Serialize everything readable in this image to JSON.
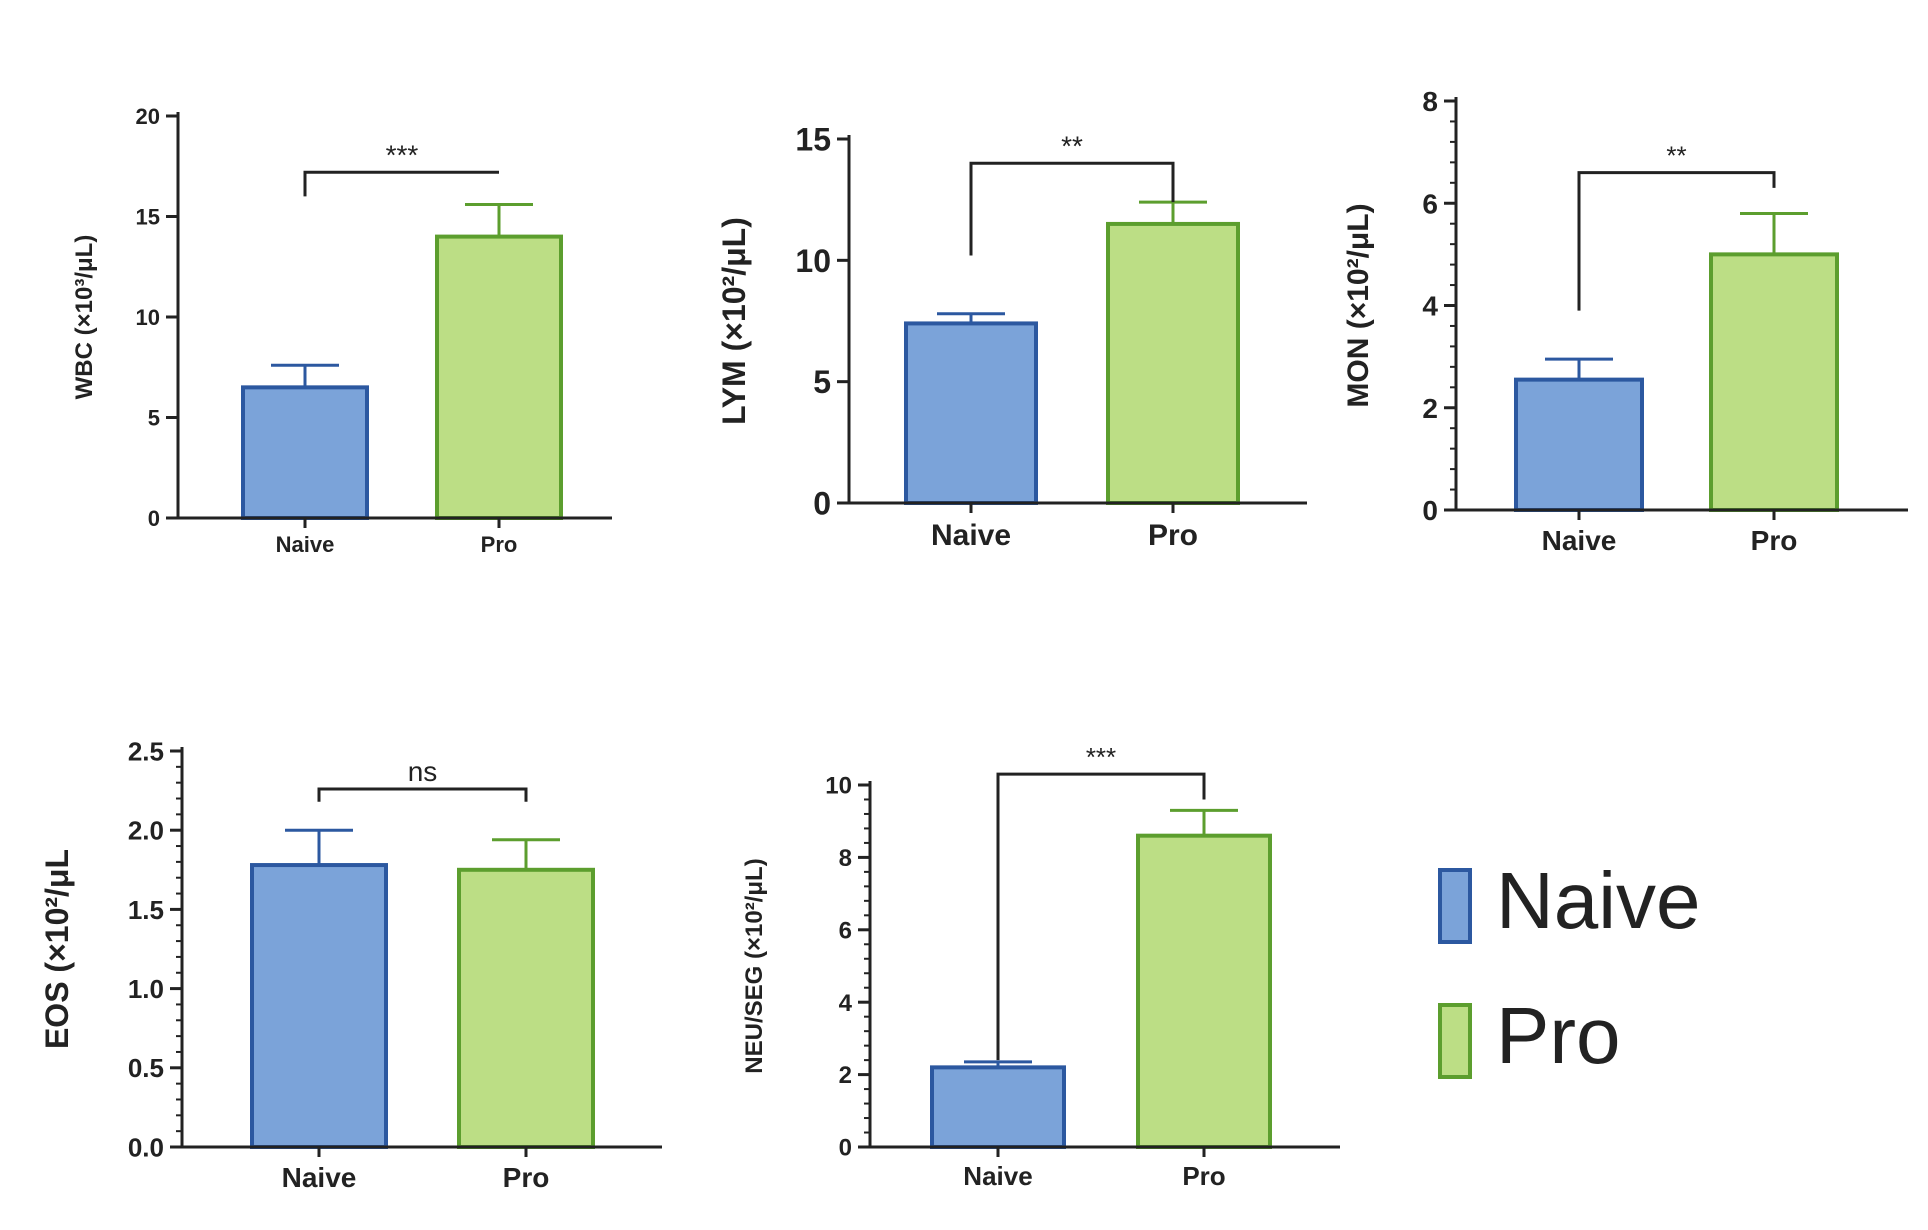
{
  "colors": {
    "naive_fill": "#7ba3d9",
    "naive_edge": "#2c58a0",
    "pro_fill": "#bcde85",
    "pro_edge": "#5c9e2e",
    "axis": "#222222"
  },
  "legend": [
    {
      "label": "Naive",
      "series": "naive"
    },
    {
      "label": "Pro",
      "series": "pro"
    }
  ],
  "chart_data": [
    {
      "id": "wbc",
      "type": "bar",
      "categories": [
        "Naive",
        "Pro"
      ],
      "values": [
        6.5,
        14.0
      ],
      "errors": [
        1.1,
        1.6
      ],
      "ylabel": "WBC (×10³/μL)",
      "ylim": [
        0,
        20
      ],
      "yticks": [
        "0",
        "5",
        "10",
        "15",
        "20"
      ],
      "significance": "***",
      "bracket_left_value": 16,
      "bracket_right_value": 17.2,
      "bracket_top_value": 17.2
    },
    {
      "id": "lym",
      "type": "bar",
      "categories": [
        "Naive",
        "Pro"
      ],
      "values": [
        7.4,
        11.5
      ],
      "errors": [
        0.4,
        0.9
      ],
      "ylabel": "LYM (×10²/μL)",
      "ylim": [
        0,
        15
      ],
      "yticks": [
        "0",
        "5",
        "10",
        "15"
      ],
      "significance": "**",
      "bracket_left_value": 10.2,
      "bracket_right_value": 12.4,
      "bracket_top_value": 14.0
    },
    {
      "id": "mon",
      "type": "bar",
      "categories": [
        "Naive",
        "Pro"
      ],
      "values": [
        2.55,
        5.0
      ],
      "errors": [
        0.4,
        0.8
      ],
      "ylabel": "MON (×10²/μL)",
      "ylim": [
        0,
        8
      ],
      "yticks": [
        "0",
        "2",
        "4",
        "6",
        "8"
      ],
      "significance": "**",
      "bracket_left_value": 3.9,
      "bracket_right_value": 6.3,
      "bracket_top_value": 6.6
    },
    {
      "id": "eos",
      "type": "bar",
      "categories": [
        "Naive",
        "Pro"
      ],
      "values": [
        1.78,
        1.75
      ],
      "errors": [
        0.22,
        0.19
      ],
      "ylabel": "EOS (×10²/μL",
      "ylim": [
        0,
        2.5
      ],
      "yticks": [
        "0.0",
        "0.5",
        "1.0",
        "1.5",
        "2.0",
        "2.5"
      ],
      "significance": "ns",
      "bracket_left_value": 2.18,
      "bracket_right_value": 2.18,
      "bracket_top_value": 2.26
    },
    {
      "id": "neu",
      "type": "bar",
      "categories": [
        "Naive",
        "Pro"
      ],
      "values": [
        2.2,
        8.6
      ],
      "errors": [
        0.15,
        0.7
      ],
      "ylabel": "NEU/SEG (×10²/μL)",
      "ylim": [
        0,
        10
      ],
      "yticks": [
        "0",
        "2",
        "4",
        "6",
        "8",
        "10"
      ],
      "significance": "***",
      "bracket_left_value": 2.4,
      "bracket_right_value": 9.6,
      "bracket_top_value": 10.3
    }
  ]
}
